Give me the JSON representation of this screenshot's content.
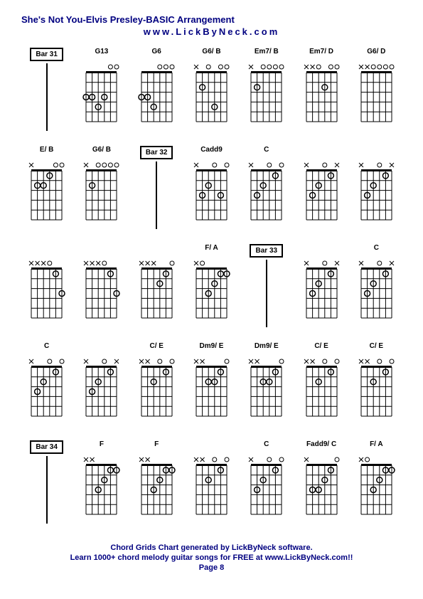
{
  "title": "She's Not You-Elvis Presley-BASIC Arrangement",
  "subtitle": "www.LickByNeck.com",
  "footer": {
    "line1": "Chord Grids Chart generated by LickByNeck software.",
    "line2": "Learn 1000+ chord melody guitar songs for FREE at www.LickByNeck.com!!",
    "line3": "Page 8"
  },
  "diagram": {
    "strings": 6,
    "frets": 5,
    "width": 55,
    "height": 95,
    "grid_color": "#000000",
    "dot_radius": 4
  },
  "cells": [
    {
      "type": "bar",
      "label": "Bar 31"
    },
    {
      "type": "chord",
      "label": "G13",
      "markers": "xoo",
      "dots": [
        [
          0,
          3
        ],
        [
          1,
          3
        ],
        [
          2,
          4
        ],
        [
          3,
          3
        ]
      ],
      "open": [
        4,
        5
      ]
    },
    {
      "type": "chord",
      "label": "G6",
      "markers": "xxo",
      "dots": [
        [
          0,
          3
        ],
        [
          1,
          3
        ],
        [
          2,
          4
        ]
      ],
      "open": [
        3,
        4,
        5
      ]
    },
    {
      "type": "chord",
      "label": "G6/ B",
      "markers": "x",
      "dots": [
        [
          1,
          2
        ],
        [
          3,
          4
        ]
      ],
      "open": [
        2,
        4,
        5
      ]
    },
    {
      "type": "chord",
      "label": "Em7/ B",
      "markers": "x",
      "dots": [
        [
          1,
          2
        ]
      ],
      "open": [
        2,
        3,
        4,
        5
      ]
    },
    {
      "type": "chord",
      "label": "Em7/ D",
      "markers": "xx",
      "dots": [
        [
          3,
          2
        ]
      ],
      "open": [
        2,
        4,
        5
      ]
    },
    {
      "type": "chord",
      "label": "G6/ D",
      "markers": "xx",
      "dots": [],
      "open": [
        2,
        3,
        4,
        5
      ]
    },
    {
      "type": "chord",
      "label": "E/ B",
      "markers": "x",
      "dots": [
        [
          1,
          2
        ],
        [
          2,
          2
        ],
        [
          3,
          1
        ]
      ],
      "open": [
        4,
        5
      ]
    },
    {
      "type": "chord",
      "label": "G6/ B",
      "markers": "x",
      "dots": [
        [
          1,
          2
        ]
      ],
      "open": [
        2,
        3,
        4,
        5
      ]
    },
    {
      "type": "bar",
      "label": "Bar 32"
    },
    {
      "type": "chord",
      "label": "Cadd9",
      "markers": "x",
      "dots": [
        [
          1,
          3
        ],
        [
          2,
          2
        ],
        [
          4,
          3
        ]
      ],
      "open": [
        3,
        5
      ]
    },
    {
      "type": "chord",
      "label": "C",
      "markers": "x",
      "dots": [
        [
          1,
          3
        ],
        [
          2,
          2
        ],
        [
          4,
          1
        ]
      ],
      "open": [
        3,
        5
      ]
    },
    {
      "type": "chord",
      "label": "",
      "markers": "xxx",
      "dots": [
        [
          1,
          3
        ],
        [
          2,
          2
        ],
        [
          4,
          1
        ]
      ],
      "open": [
        3
      ]
    },
    {
      "type": "chord",
      "label": "",
      "markers": "xxx",
      "dots": [
        [
          1,
          3
        ],
        [
          2,
          2
        ],
        [
          4,
          1
        ]
      ],
      "open": [
        3
      ]
    },
    {
      "type": "chord",
      "label": "",
      "markers": "xxx",
      "dots": [
        [
          4,
          1
        ],
        [
          5,
          3
        ]
      ],
      "open": [
        3
      ]
    },
    {
      "type": "chord",
      "label": "",
      "markers": "xxx",
      "dots": [
        [
          4,
          1
        ],
        [
          5,
          3
        ]
      ],
      "open": [
        3
      ]
    },
    {
      "type": "chord",
      "label": "",
      "markers": "xxx",
      "dots": [
        [
          3,
          2
        ],
        [
          4,
          1
        ]
      ],
      "open": [
        5
      ]
    },
    {
      "type": "chord",
      "label": "F/ A",
      "markers": "x",
      "dots": [
        [
          2,
          3
        ],
        [
          3,
          2
        ],
        [
          4,
          1
        ],
        [
          5,
          1
        ]
      ],
      "open": [
        1
      ]
    },
    {
      "type": "bar",
      "label": "Bar 33"
    },
    {
      "type": "chord",
      "label": "",
      "markers": "xxx",
      "dots": [
        [
          1,
          3
        ],
        [
          2,
          2
        ],
        [
          4,
          1
        ]
      ],
      "open": [
        3
      ]
    },
    {
      "type": "chord",
      "label": "C",
      "markers": "xxx",
      "dots": [
        [
          1,
          3
        ],
        [
          2,
          2
        ],
        [
          4,
          1
        ]
      ],
      "open": [
        3
      ]
    },
    {
      "type": "chord",
      "label": "C",
      "markers": "x",
      "dots": [
        [
          1,
          3
        ],
        [
          2,
          2
        ],
        [
          4,
          1
        ]
      ],
      "open": [
        3,
        5
      ]
    },
    {
      "type": "chord",
      "label": "",
      "markers": "xxx",
      "dots": [
        [
          1,
          3
        ],
        [
          2,
          2
        ],
        [
          4,
          1
        ]
      ],
      "open": [
        3
      ]
    },
    {
      "type": "chord",
      "label": "C/ E",
      "markers": "xx",
      "dots": [
        [
          2,
          2
        ],
        [
          4,
          1
        ]
      ],
      "open": [
        3,
        5
      ]
    },
    {
      "type": "chord",
      "label": "Dm9/ E",
      "markers": "xx",
      "dots": [
        [
          2,
          2
        ],
        [
          3,
          2
        ],
        [
          4,
          1
        ]
      ],
      "open": [
        5
      ]
    },
    {
      "type": "chord",
      "label": "Dm9/ E",
      "markers": "xx",
      "dots": [
        [
          2,
          2
        ],
        [
          3,
          2
        ],
        [
          4,
          1
        ]
      ],
      "open": [
        5
      ]
    },
    {
      "type": "chord",
      "label": "C/ E",
      "markers": "xx",
      "dots": [
        [
          2,
          2
        ],
        [
          4,
          1
        ]
      ],
      "open": [
        3,
        5
      ]
    },
    {
      "type": "chord",
      "label": "C/ E",
      "markers": "xx",
      "dots": [
        [
          2,
          2
        ],
        [
          4,
          1
        ]
      ],
      "open": [
        3,
        5
      ]
    },
    {
      "type": "bar",
      "label": "Bar 34"
    },
    {
      "type": "chord",
      "label": "F",
      "markers": "xx",
      "dots": [
        [
          2,
          3
        ],
        [
          3,
          2
        ],
        [
          4,
          1
        ],
        [
          5,
          1
        ]
      ],
      "open": []
    },
    {
      "type": "chord",
      "label": "F",
      "markers": "xx",
      "dots": [
        [
          2,
          3
        ],
        [
          3,
          2
        ],
        [
          4,
          1
        ],
        [
          5,
          1
        ]
      ],
      "open": []
    },
    {
      "type": "chord",
      "label": "",
      "markers": "xxx",
      "dots": [
        [
          2,
          2
        ],
        [
          4,
          1
        ]
      ],
      "open": [
        3,
        5
      ]
    },
    {
      "type": "chord",
      "label": "C",
      "markers": "x",
      "dots": [
        [
          1,
          3
        ],
        [
          2,
          2
        ],
        [
          4,
          1
        ]
      ],
      "open": [
        3,
        5
      ]
    },
    {
      "type": "chord",
      "label": "Fadd9/ C",
      "markers": "x",
      "dots": [
        [
          1,
          3
        ],
        [
          2,
          3
        ],
        [
          3,
          2
        ],
        [
          4,
          1
        ]
      ],
      "open": [
        5
      ]
    },
    {
      "type": "chord",
      "label": "F/ A",
      "markers": "x",
      "dots": [
        [
          2,
          3
        ],
        [
          3,
          2
        ],
        [
          4,
          1
        ],
        [
          5,
          1
        ]
      ],
      "open": [
        1
      ]
    }
  ]
}
